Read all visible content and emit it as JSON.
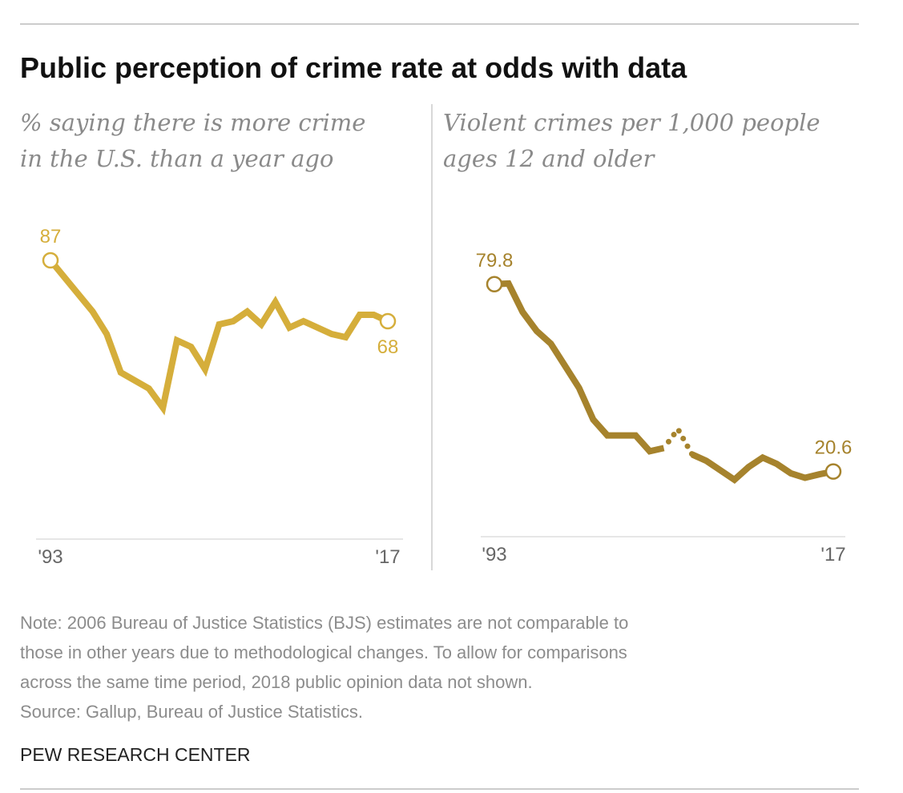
{
  "title": "Public perception of crime rate at odds with data",
  "chart_data": [
    {
      "type": "line",
      "title": "% saying there is more crime in the U.S. than a year ago",
      "title_lines": [
        "% saying there is more crime",
        "in the U.S. than a year ago"
      ],
      "x": [
        1993,
        1996,
        1997,
        1998,
        2000,
        2001,
        2002,
        2003,
        2004,
        2005,
        2006,
        2007,
        2008,
        2009,
        2010,
        2011,
        2013,
        2014,
        2015,
        2016,
        2017
      ],
      "xlim": [
        1993,
        2017
      ],
      "xticks": [
        {
          "value": 1993,
          "label": "'93"
        },
        {
          "value": 2017,
          "label": "'17"
        }
      ],
      "ylim": [
        0,
        100
      ],
      "series": [
        {
          "name": "Public perception",
          "color": "#d5ae3b",
          "values": [
            87,
            71,
            64,
            52,
            47,
            41,
            62,
            60,
            53,
            67,
            68,
            71,
            67,
            74,
            66,
            68,
            64,
            63,
            70,
            70,
            68
          ]
        }
      ]
    },
    {
      "type": "line",
      "title": "Violent crimes per 1,000 people ages 12 and older",
      "title_lines": [
        "Violent crimes per 1,000 people",
        "ages 12 and older"
      ],
      "x": [
        1993,
        1994,
        1995,
        1996,
        1997,
        1998,
        1999,
        2000,
        2001,
        2002,
        2003,
        2004,
        2005,
        2006,
        2007,
        2008,
        2009,
        2010,
        2011,
        2012,
        2013,
        2014,
        2015,
        2016,
        2017
      ],
      "xlim": [
        1993,
        2017
      ],
      "xticks": [
        {
          "value": 1993,
          "label": "'93"
        },
        {
          "value": 2017,
          "label": "'17"
        }
      ],
      "ylim": [
        0,
        100
      ],
      "series": [
        {
          "name": "Violent crime rate",
          "color": "#a6832d",
          "dotted": [
            2006
          ],
          "values": [
            79.8,
            80,
            71,
            65,
            61,
            54,
            47,
            37,
            32,
            32,
            32,
            27,
            28,
            34,
            26,
            24,
            21,
            18,
            22,
            25,
            23,
            20,
            18.6,
            19.7,
            20.6
          ]
        }
      ]
    }
  ],
  "note": [
    "Note: 2006 Bureau of Justice Statistics (BJS) estimates are not comparable to",
    "those in other years due to methodological changes. To allow for comparisons",
    "across the same time period, 2018 public opinion data not shown."
  ],
  "source": "Source: Gallup, Bureau of Justice Statistics.",
  "brand": "PEW RESEARCH CENTER"
}
